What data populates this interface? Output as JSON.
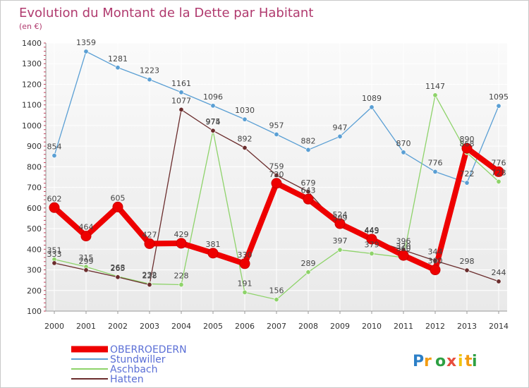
{
  "chart_data": {
    "type": "line",
    "title": "Evolution du Montant de la Dette par Habitant",
    "subtitle": "(en €)",
    "xlabel": "",
    "ylabel": "",
    "x": [
      "2000",
      "2001",
      "2002",
      "2003",
      "2004",
      "2005",
      "2006",
      "2007",
      "2008",
      "2009",
      "2010",
      "2011",
      "2012",
      "2013",
      "2014"
    ],
    "ylim": [
      100,
      1400
    ],
    "yticks": [
      100,
      200,
      300,
      400,
      500,
      600,
      700,
      800,
      900,
      1000,
      1100,
      1200,
      1300,
      1400
    ],
    "grid": true,
    "legend_position": "bottom-left",
    "series": [
      {
        "name": "Stundwiller",
        "color": "#5a9fd4",
        "values": [
          854,
          1359,
          1281,
          1223,
          1161,
          1096,
          1030,
          957,
          882,
          947,
          1089,
          870,
          776,
          722,
          1095
        ]
      },
      {
        "name": "Aschbach",
        "color": "#8ed36a",
        "values": [
          351,
          315,
          268,
          232,
          228,
          974,
          191,
          156,
          289,
          397,
          379,
          360,
          1147,
          868,
          728
        ]
      },
      {
        "name": "Hatten",
        "color": "#6b2d2d",
        "values": [
          333,
          299,
          265,
          228,
          1077,
          975,
          892,
          759,
          679,
          509,
          445,
          396,
          344,
          298,
          244
        ]
      },
      {
        "name": "OBERROEDERN",
        "color": "#ee0000",
        "values": [
          602,
          464,
          605,
          427,
          429,
          381,
          330,
          720,
          643,
          524,
          449,
          370,
          300,
          890,
          776
        ]
      }
    ]
  },
  "legend": {
    "items": [
      {
        "label": "OBERROEDERN",
        "color": "#ee0000"
      },
      {
        "label": "Stundwiller",
        "color": "#5a9fd4"
      },
      {
        "label": "Aschbach",
        "color": "#8ed36a"
      },
      {
        "label": "Hatten",
        "color": "#6b2d2d"
      }
    ]
  },
  "branding": {
    "logo_text": "Proxiti",
    "colors": [
      "#2c7fc7",
      "#f39c12",
      "#2ea043",
      "#e74c3c",
      "#f1c40f"
    ]
  }
}
